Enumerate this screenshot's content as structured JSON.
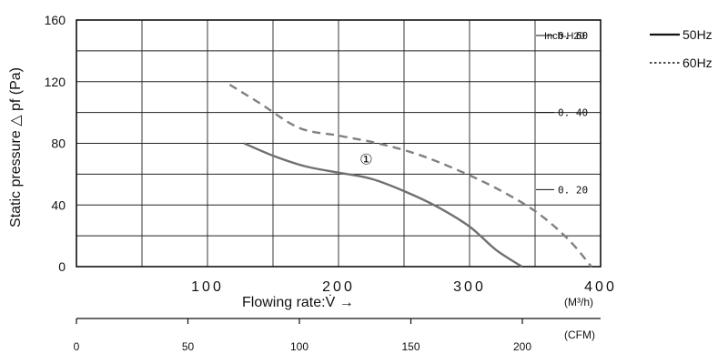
{
  "chart_data": {
    "type": "line",
    "ylabel": "Static pressure △ pf (Pa)",
    "xlabel": "Flowing rate:V̇ →",
    "x_unit": "(M³/h)",
    "ylim": [
      0,
      160
    ],
    "xlim": [
      0,
      400
    ],
    "y_ticks": [
      "0",
      "40",
      "80",
      "120",
      "160"
    ],
    "y_tick_values": [
      0,
      40,
      80,
      120,
      160
    ],
    "x_ticks": [
      "100",
      "200",
      "300",
      "400"
    ],
    "x_tick_values": [
      100,
      200,
      300,
      400
    ],
    "cfm_axis": {
      "unit": "(CFM)",
      "ticks": [
        "0",
        "50",
        "100",
        "150",
        "200"
      ],
      "tick_values": [
        0,
        50,
        100,
        150,
        200
      ]
    },
    "inch_axis": {
      "unit": "Inch-H20",
      "ticks": [
        "0. 60",
        "0. 40",
        "0. 20"
      ],
      "tick_values_pa": [
        150,
        100,
        50
      ]
    },
    "curve_label": "①",
    "curve_label_pos": [
      210,
      70
    ],
    "grid": true,
    "legend": {
      "position": "right"
    },
    "series": [
      {
        "name": "50Hz",
        "style": "solid",
        "color": "#707070",
        "points": [
          [
            128,
            80
          ],
          [
            150,
            72
          ],
          [
            175,
            65
          ],
          [
            200,
            61
          ],
          [
            225,
            57
          ],
          [
            250,
            49
          ],
          [
            275,
            39
          ],
          [
            300,
            26
          ],
          [
            320,
            11
          ],
          [
            340,
            0
          ]
        ]
      },
      {
        "name": "60Hz",
        "style": "dashed",
        "color": "#808080",
        "points": [
          [
            117,
            118
          ],
          [
            140,
            106
          ],
          [
            170,
            90
          ],
          [
            200,
            85
          ],
          [
            230,
            80
          ],
          [
            260,
            73
          ],
          [
            290,
            63
          ],
          [
            320,
            51
          ],
          [
            350,
            36
          ],
          [
            375,
            18
          ],
          [
            393,
            0
          ]
        ]
      }
    ]
  }
}
